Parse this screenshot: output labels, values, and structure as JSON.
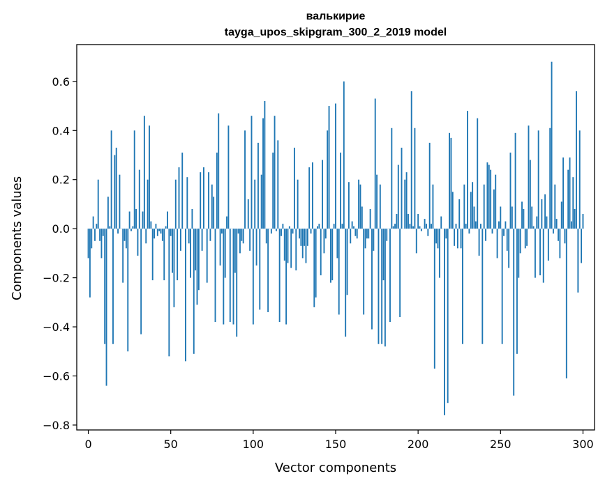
{
  "chart_data": {
    "type": "bar",
    "title": "валькирие",
    "subtitle": "tayga_upos_skipgram_300_2_2019 model",
    "xlabel": "Vector components",
    "ylabel": "Components values",
    "xlim": [
      -7,
      307
    ],
    "ylim": [
      -0.82,
      0.75
    ],
    "xticks": [
      0,
      50,
      100,
      150,
      200,
      250,
      300
    ],
    "yticks": [
      -0.8,
      -0.6,
      -0.4,
      -0.2,
      0.0,
      0.2,
      0.4,
      0.6
    ],
    "ytick_labels": [
      "−0.8",
      "−0.6",
      "−0.4",
      "−0.2",
      "0.0",
      "0.2",
      "0.4",
      "0.6"
    ],
    "bar_color": "#1f77b4",
    "grid": false,
    "legend": false,
    "values": [
      -0.12,
      -0.28,
      -0.08,
      0.05,
      -0.05,
      0.02,
      0.2,
      -0.05,
      -0.12,
      -0.03,
      -0.47,
      -0.64,
      0.13,
      0.01,
      0.4,
      -0.47,
      0.3,
      0.33,
      -0.02,
      0.22,
      0.0,
      -0.22,
      -0.05,
      -0.08,
      -0.5,
      0.07,
      -0.01,
      0.01,
      0.4,
      0.08,
      -0.11,
      0.24,
      -0.43,
      0.07,
      0.46,
      -0.06,
      0.2,
      0.42,
      0.03,
      -0.21,
      -0.04,
      0.02,
      -0.03,
      -0.01,
      -0.02,
      -0.05,
      -0.21,
      0.01,
      0.07,
      -0.52,
      -0.03,
      -0.18,
      -0.32,
      0.2,
      -0.21,
      0.25,
      -0.09,
      0.31,
      0.0,
      -0.54,
      0.21,
      -0.06,
      -0.2,
      0.08,
      -0.51,
      -0.17,
      -0.31,
      -0.25,
      0.23,
      -0.09,
      0.25,
      0.0,
      -0.22,
      0.23,
      -0.05,
      0.18,
      0.13,
      -0.38,
      0.31,
      0.47,
      -0.15,
      -0.02,
      -0.39,
      -0.2,
      0.05,
      0.42,
      -0.38,
      0.0,
      -0.39,
      -0.18,
      -0.44,
      -0.02,
      -0.1,
      -0.05,
      -0.06,
      0.4,
      0.0,
      0.12,
      -0.09,
      0.46,
      -0.39,
      0.2,
      -0.15,
      0.35,
      -0.33,
      0.22,
      0.45,
      0.52,
      -0.06,
      -0.34,
      0.0,
      -0.02,
      0.31,
      0.46,
      -0.01,
      0.36,
      -0.38,
      -0.03,
      0.02,
      -0.13,
      -0.39,
      -0.14,
      0.01,
      -0.16,
      -0.02,
      0.33,
      -0.17,
      0.2,
      -0.04,
      -0.07,
      -0.12,
      -0.07,
      -0.14,
      -0.07,
      0.25,
      -0.02,
      0.27,
      -0.32,
      -0.28,
      0.01,
      0.02,
      -0.19,
      0.28,
      -0.1,
      -0.04,
      0.4,
      0.5,
      -0.22,
      -0.21,
      0.02,
      0.51,
      -0.12,
      -0.35,
      0.31,
      0.02,
      0.6,
      -0.44,
      -0.27,
      0.19,
      -0.06,
      0.03,
      0.01,
      -0.03,
      -0.04,
      0.2,
      0.18,
      0.09,
      -0.35,
      -0.08,
      -0.04,
      -0.04,
      0.08,
      -0.41,
      -0.09,
      0.53,
      0.22,
      -0.47,
      0.18,
      -0.47,
      -0.21,
      -0.48,
      -0.05,
      0.0,
      -0.38,
      0.41,
      0.01,
      0.02,
      0.06,
      0.26,
      -0.36,
      0.33,
      0.0,
      0.2,
      0.23,
      0.06,
      0.02,
      0.56,
      0.01,
      0.41,
      -0.1,
      0.06,
      0.01,
      -0.01,
      0.0,
      0.04,
      0.02,
      -0.03,
      0.35,
      0.02,
      0.18,
      -0.57,
      -0.06,
      -0.08,
      -0.2,
      0.05,
      0.0,
      -0.76,
      -0.04,
      -0.71,
      0.39,
      0.37,
      0.15,
      -0.07,
      0.02,
      -0.08,
      0.12,
      -0.08,
      -0.47,
      0.18,
      0.02,
      0.48,
      -0.02,
      0.15,
      0.19,
      0.09,
      0.03,
      0.45,
      -0.11,
      0.02,
      -0.47,
      0.18,
      -0.05,
      0.27,
      0.26,
      0.24,
      -0.02,
      0.16,
      0.22,
      -0.12,
      0.03,
      0.09,
      -0.47,
      -0.03,
      0.03,
      -0.09,
      -0.16,
      0.31,
      0.09,
      -0.68,
      0.39,
      -0.51,
      -0.2,
      -0.1,
      0.11,
      0.08,
      -0.08,
      -0.07,
      0.42,
      0.28,
      0.09,
      0.01,
      -0.2,
      0.05,
      0.4,
      -0.19,
      0.12,
      -0.22,
      0.14,
      0.05,
      -0.13,
      0.41,
      0.68,
      -0.02,
      0.18,
      0.04,
      -0.05,
      -0.12,
      0.11,
      0.29,
      -0.06,
      -0.61,
      0.24,
      0.29,
      0.03,
      0.21,
      0.08,
      0.56,
      -0.26,
      0.4,
      -0.14,
      0.06
    ]
  }
}
